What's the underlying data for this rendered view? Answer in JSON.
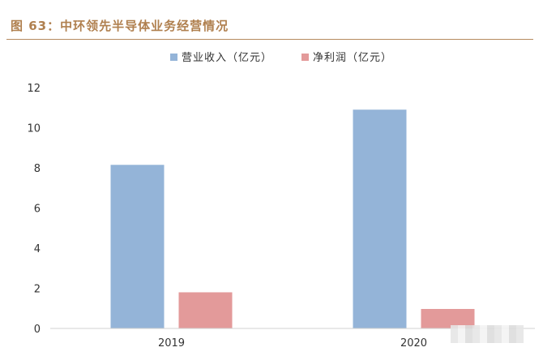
{
  "figure": {
    "title": "图 63：中环领先半导体业务经营情况"
  },
  "chart_data": {
    "type": "bar",
    "categories": [
      "2019",
      "2020"
    ],
    "series": [
      {
        "name": "营业收入（亿元）",
        "color": "#94b4d8",
        "values": [
          8.15,
          10.9
        ]
      },
      {
        "name": "净利润（亿元）",
        "color": "#e39a9a",
        "values": [
          1.8,
          0.97
        ]
      }
    ],
    "ylim": [
      0,
      12
    ],
    "yticks": [
      0,
      2,
      4,
      6,
      8,
      10,
      12
    ],
    "grid": false,
    "legend_position": "top-center"
  }
}
